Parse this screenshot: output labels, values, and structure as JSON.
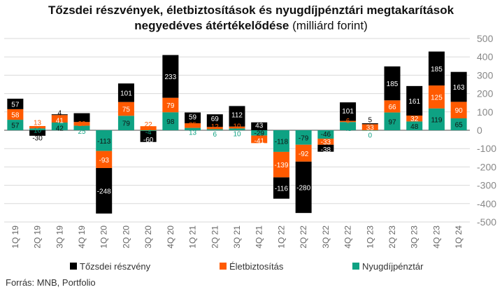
{
  "chart_data": {
    "type": "bar",
    "stacked": true,
    "title_line1": "Tőzsdei részvények, életbiztosítások és nyugdíjpénztári megtakarítások",
    "title_line2_bold": "negyedéves átértékelődése",
    "title_line2_normal": " (milliárd forint)",
    "xlabel": "",
    "ylabel": "",
    "ylim": [
      -500,
      500
    ],
    "yticks": [
      500,
      400,
      300,
      200,
      100,
      0,
      -100,
      -200,
      -300,
      -400,
      -500
    ],
    "grid": true,
    "legend_position": "bottom",
    "categories": [
      "1Q 19",
      "2Q 19",
      "3Q 19",
      "4Q 19",
      "1Q 20",
      "2Q 20",
      "3Q 20",
      "4Q 20",
      "1Q 21",
      "2Q 21",
      "3Q 21",
      "4Q 21",
      "1Q 22",
      "2Q 22",
      "3Q 22",
      "4Q 22",
      "1Q 23",
      "2Q 23",
      "3Q 23",
      "4Q 23",
      "1Q 24"
    ],
    "series": [
      {
        "name": "Nyugdíjpénztár",
        "color": "#0ea283",
        "label_color": "#111111",
        "values": [
          57,
          10,
          42,
          25,
          -113,
          79,
          -4,
          98,
          13,
          6,
          10,
          -29,
          -118,
          -79,
          -46,
          45,
          0,
          97,
          48,
          119,
          65
        ]
      },
      {
        "name": "Életbiztosítás",
        "color": "#ff5a00",
        "label_color": "#ffffff",
        "values": [
          58,
          13,
          41,
          20,
          -93,
          75,
          22,
          79,
          25,
          12,
          10,
          -41,
          -139,
          -92,
          -33,
          6,
          33,
          66,
          32,
          125,
          90
        ]
      },
      {
        "name": "Tőzsdei részvény",
        "color": "#000000",
        "label_color": "#ffffff",
        "values": [
          57,
          -30,
          4,
          48,
          -248,
          101,
          -60,
          233,
          59,
          69,
          112,
          43,
          -116,
          -280,
          -38,
          101,
          5,
          185,
          161,
          185,
          163
        ]
      }
    ],
    "legend_order": [
      "Tőzsdei részvény",
      "Életbiztosítás",
      "Nyugdíjpénztár"
    ]
  },
  "source": "Forrás: MNB, Portfolio"
}
